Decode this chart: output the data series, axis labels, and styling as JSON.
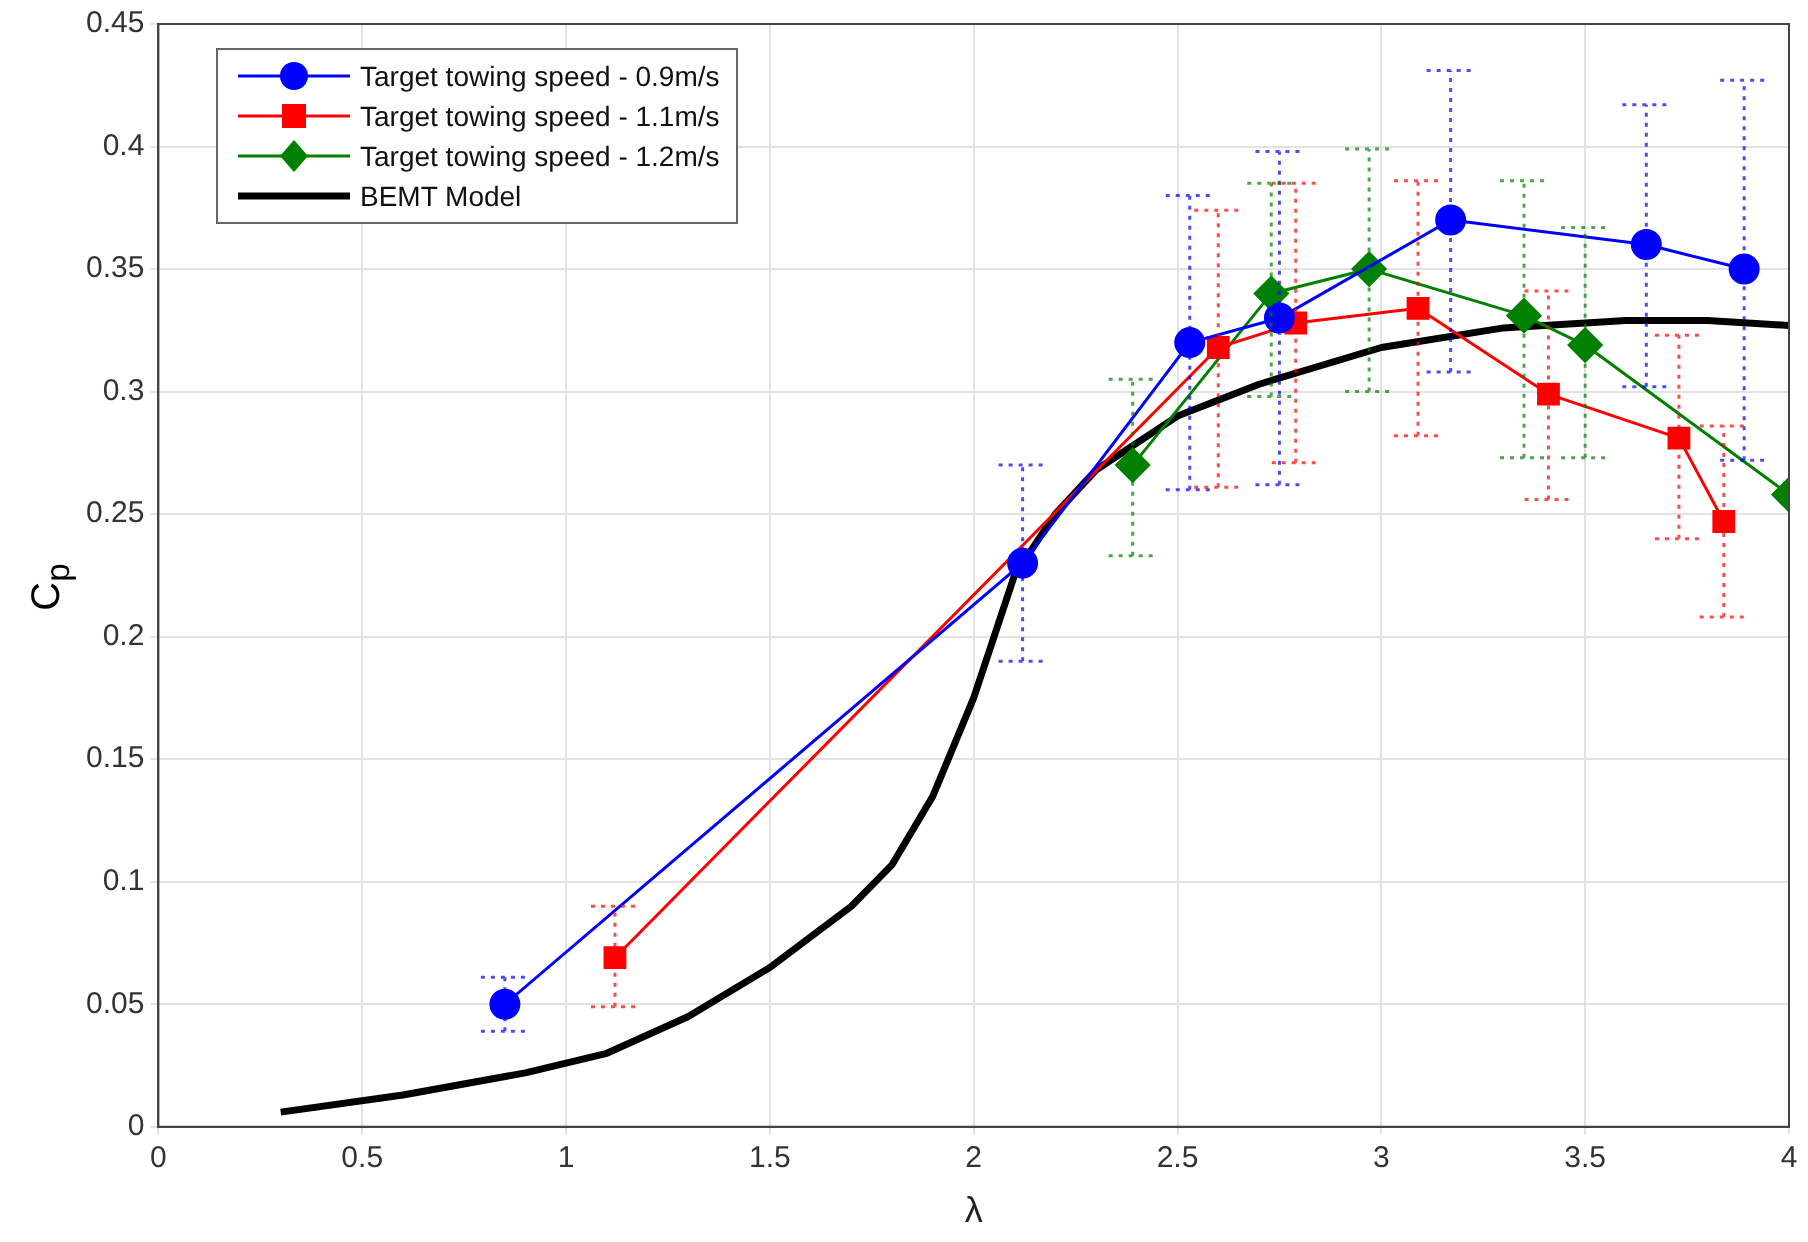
{
  "chart_data": {
    "type": "line",
    "xlabel": "λ",
    "ylabel": "C$_{p}$",
    "xlim": [
      0,
      4
    ],
    "xticks": [
      0,
      0.5,
      1,
      1.5,
      2,
      2.5,
      3,
      3.5,
      4
    ],
    "ylim": [
      0,
      0.45
    ],
    "yticks": [
      0,
      0.05,
      0.1,
      0.15,
      0.2,
      0.25,
      0.3,
      0.35,
      0.4,
      0.45
    ],
    "grid": true,
    "legend": "top left",
    "series": [
      {
        "name": "Target towing speed - 0.9m/s",
        "color": "#0000ff",
        "marker": "circle",
        "x": [
          0.85,
          2.12,
          2.53,
          2.75,
          3.17,
          3.65,
          3.89
        ],
        "values": [
          0.05,
          0.23,
          0.32,
          0.33,
          0.37,
          0.36,
          0.35
        ],
        "errors": [
          [
            0.039,
            0.061
          ],
          [
            0.19,
            0.27
          ],
          [
            0.26,
            0.38
          ],
          [
            0.262,
            0.398
          ],
          [
            0.308,
            0.431
          ],
          [
            0.302,
            0.417
          ],
          [
            0.272,
            0.427
          ]
        ]
      },
      {
        "name": "Target towing speed - 1.1m/s",
        "color": "#ff0000",
        "marker": "square",
        "x": [
          1.12,
          2.6,
          2.79,
          3.09,
          3.41,
          3.73,
          3.84
        ],
        "values": [
          0.069,
          0.318,
          0.328,
          0.334,
          0.299,
          0.281,
          0.247
        ],
        "errors": [
          [
            0.049,
            0.09
          ],
          [
            0.261,
            0.374
          ],
          [
            0.271,
            0.385
          ],
          [
            0.282,
            0.386
          ],
          [
            0.256,
            0.341
          ],
          [
            0.24,
            0.323
          ],
          [
            0.208,
            0.286
          ]
        ]
      },
      {
        "name": "Target towing speed - 1.2m/s",
        "color": "#008000",
        "marker": "diamond",
        "x": [
          2.39,
          2.73,
          2.97,
          3.35,
          3.5,
          4
        ],
        "values": [
          0.27,
          0.34,
          0.35,
          0.331,
          0.319,
          0.258
        ],
        "errors": [
          [
            0.233,
            0.305
          ],
          [
            0.298,
            0.385
          ],
          [
            0.3,
            0.399
          ],
          [
            0.273,
            0.386
          ],
          [
            0.273,
            0.367
          ],
          null
        ]
      },
      {
        "name": "BEMT Model",
        "color": "#000000",
        "marker": "none",
        "x": [
          0.3,
          0.6,
          0.9,
          1.1,
          1.3,
          1.5,
          1.7,
          1.8,
          1.9,
          2.0,
          2.05,
          2.1,
          2.2,
          2.3,
          2.5,
          2.7,
          3.0,
          3.3,
          3.6,
          3.8,
          4.0
        ],
        "values": [
          0.006,
          0.013,
          0.022,
          0.03,
          0.045,
          0.065,
          0.09,
          0.107,
          0.135,
          0.175,
          0.2,
          0.225,
          0.25,
          0.268,
          0.29,
          0.303,
          0.318,
          0.326,
          0.329,
          0.329,
          0.327
        ]
      }
    ]
  }
}
